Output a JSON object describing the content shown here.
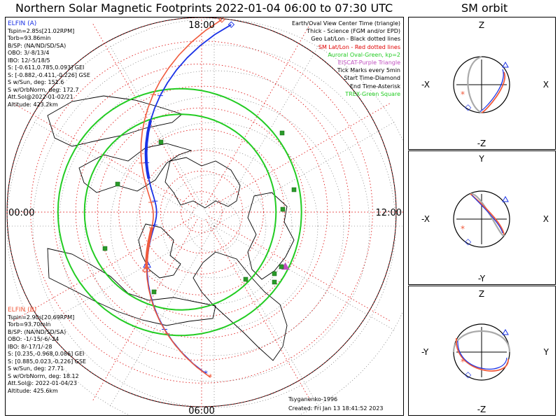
{
  "title": "Northern Solar Magnetic Footprints 2022-01-04 06:00 to 07:30 UTC",
  "sm_title": "SM orbit",
  "mlt_labels": {
    "top": "18:00",
    "left": "00:00",
    "right": "12:00",
    "bottom": "06:00"
  },
  "elfin_a": {
    "name": "ELFIN (A)",
    "color": "#1a32e6",
    "lines": [
      "Tspin=2.85s[21.02RPM]",
      "Torb=93.86min",
      "B/SP: (NA/ND/SD/SA)",
      "OBO: 3/-8/13/4",
      "IBO: 12/-5/18/5",
      "S: [-0.611,0.785,0.093] GEI",
      "S: [-0.882,-0.411,-0.226] GSE",
      "S w/Sun, deg: 151.6",
      "S w/OrbNorm, deg: 172.7",
      "Att.Sol@2022-01-02/21",
      "Altitude: 423.2km"
    ]
  },
  "elfin_b": {
    "name": "ELFIN (B)",
    "color": "#f05a3c",
    "lines": [
      "Tspin=2.90s[20.69RPM]",
      "Torb=93.70min",
      "B/SP: (NA/ND/SD/SA)",
      "OBO: -1/-15/-6/-24",
      "IBO: 8/-17/1/-28",
      "S: [0.235,-0.968,0.086] GEI",
      "S: [0.885,0.023,-0.226] GSE",
      "S w/Sun, deg: 27.71",
      "S w/OrbNorm, deg: 18.12",
      "Att.Sol@: 2022-01-04/23",
      "Altitude: 425.6km"
    ]
  },
  "legend": [
    {
      "text": "Earth/Oval View Center Time (triangle)",
      "color": "#000000"
    },
    {
      "text": "Thick - Science (FGM and/or EPD)",
      "color": "#000000"
    },
    {
      "text": "Geo Lat/Lon - Black dotted lines",
      "color": "#000000"
    },
    {
      "text": "SM Lat/Lon - Red dotted lines",
      "color": "#e00000"
    },
    {
      "text": "Auroral Oval-Green, kp=2",
      "color": "#22cc22"
    },
    {
      "text": "EISCAT-Purple Triangle",
      "color": "#c050c0"
    },
    {
      "text": "Tick Marks every 5min",
      "color": "#000000"
    },
    {
      "text": "Start Time-Diamond",
      "color": "#000000"
    },
    {
      "text": "End Time-Asterisk",
      "color": "#000000"
    },
    {
      "text": "TREX-Green Square",
      "color": "#22cc22"
    }
  ],
  "credits": {
    "model": "Tsyganenko-1996",
    "created": "Created: Fri Jan 13 18:41:52 2023"
  },
  "sm_panels": [
    {
      "name": "xz-view",
      "top": "Z",
      "bottom": "-Z",
      "left": "-X",
      "right": "X"
    },
    {
      "name": "xy-view",
      "top": "Y",
      "bottom": "-Y",
      "left": "-X",
      "right": "X"
    },
    {
      "name": "yz-view",
      "top": "Z",
      "bottom": "-Z",
      "left": "-Y",
      "right": "Y"
    }
  ],
  "chart_data": {
    "type": "map",
    "projection": "north polar stereographic, SM coordinates",
    "center_mlat_deg": 90,
    "sm_lat_circles_deg": [
      85,
      80,
      75,
      70,
      65,
      60,
      55,
      50,
      45
    ],
    "mlt_meridians_hours": [
      0,
      2,
      4,
      6,
      8,
      10,
      12,
      14,
      16,
      18,
      20,
      22
    ],
    "auroral_oval_kp": 2,
    "tracks": [
      {
        "satellite": "ELFIN (A)",
        "color": "#1a32e6",
        "start_mlt": 17.4,
        "end_mlt": 6.1,
        "start_mlat_deg": 46,
        "end_mlat_deg": 52
      },
      {
        "satellite": "ELFIN (B)",
        "color": "#f05a3c",
        "start_mlt": 17.6,
        "end_mlt": 6.2,
        "start_mlat_deg": 46,
        "end_mlat_deg": 52
      }
    ],
    "eiscat": {
      "mlt": 9.8,
      "mlat_deg": 66
    },
    "trex_station_count": 11
  }
}
